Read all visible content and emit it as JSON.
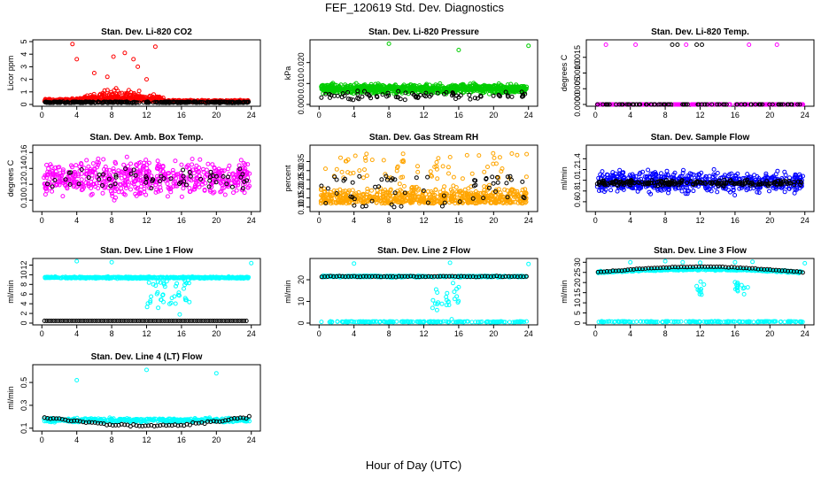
{
  "title": "FEF_120619  Std. Dev. Diagnostics",
  "xlabel": "Hour of Day (UTC)",
  "colors": {
    "red": "#ff0000",
    "green": "#00cc00",
    "magenta": "#ff00ff",
    "orange": "#ffa500",
    "blue": "#0000ff",
    "cyan": "#00ffff",
    "black": "#000000"
  },
  "chart_data": [
    {
      "type": "scatter",
      "title": "Stan. Dev. Li-820 CO2",
      "ylabel": "Licor ppm",
      "xlim": [
        0,
        24
      ],
      "ylim": [
        0,
        5
      ],
      "xticks": [
        "0",
        "4",
        "8",
        "12",
        "16",
        "20",
        "24"
      ],
      "yticks": [
        "0",
        "1",
        "2",
        "3",
        "4",
        "5"
      ],
      "series": [
        {
          "color": "#ff0000",
          "pattern": "base 0.2–1.2 with spikes, peaks near 4.8 at hour 3.5 and 4.6 at hour 13",
          "points": [
            [
              3.5,
              4.8
            ],
            [
              13,
              4.6
            ],
            [
              8.2,
              3.8
            ],
            [
              9.5,
              4.1
            ],
            [
              10.5,
              3.6
            ],
            [
              4,
              3.6
            ],
            [
              11,
              3.0
            ],
            [
              6,
              2.5
            ],
            [
              7.5,
              2.2
            ],
            [
              12,
              2.0
            ]
          ]
        },
        {
          "color": "#000000",
          "pattern": "near 0.15 across 0–24"
        }
      ]
    },
    {
      "type": "scatter",
      "title": "Stan. Dev. Li-820 Pressure",
      "ylabel": "kPa",
      "xlim": [
        0,
        24
      ],
      "ylim": [
        0,
        0.03
      ],
      "xticks": [
        "0",
        "4",
        "8",
        "12",
        "16",
        "20",
        "24"
      ],
      "yticks": [
        "0.000",
        "0.010",
        "0.020"
      ],
      "series": [
        {
          "color": "#00cc00",
          "pattern": "band 0.004–0.011",
          "points": [
            [
              8,
              0.029
            ],
            [
              16,
              0.026
            ],
            [
              24,
              0.028
            ]
          ]
        },
        {
          "color": "#000000",
          "pattern": "band 0.001–0.008"
        }
      ]
    },
    {
      "type": "scatter",
      "title": "Stan. Dev. Li-820 Temp.",
      "ylabel": "degrees C",
      "xlim": [
        0,
        24
      ],
      "ylim": [
        0,
        0.002
      ],
      "xticks": [
        "0",
        "4",
        "8",
        "12",
        "16",
        "20",
        "24"
      ],
      "yticks": [
        "0.0000",
        "0.0005",
        "0.0010",
        "0.0015"
      ],
      "series": [
        {
          "color": "#ff00ff",
          "pattern": "0 across 0–24",
          "points": [
            [
              1.2,
              0.0019
            ],
            [
              4.6,
              0.0019
            ],
            [
              10.4,
              0.0019
            ],
            [
              17.6,
              0.0019
            ],
            [
              20.8,
              0.0019
            ]
          ]
        },
        {
          "color": "#000000",
          "pattern": "0 across 0–24",
          "points": [
            [
              8.8,
              0.0019
            ],
            [
              9.4,
              0.0019
            ],
            [
              11.6,
              0.0019
            ],
            [
              12.2,
              0.0019
            ]
          ]
        }
      ]
    },
    {
      "type": "scatter",
      "title": "Stan. Dev. Amb. Box Temp.",
      "ylabel": "degrees C",
      "xlim": [
        0,
        24
      ],
      "ylim": [
        0.088,
        0.167
      ],
      "xticks": [
        "0",
        "4",
        "8",
        "12",
        "16",
        "20",
        "24"
      ],
      "yticks": [
        "0.10",
        "0.12",
        "0.14",
        "0.16"
      ],
      "series": [
        {
          "color": "#ff00ff",
          "pattern": "scatter 0.09–0.165"
        },
        {
          "color": "#000000",
          "pattern": "scatter 0.10–0.155"
        }
      ]
    },
    {
      "type": "scatter",
      "title": "Stan. Dev. Gas Stream RH",
      "ylabel": "percent",
      "xlim": [
        0,
        24
      ],
      "ylim": [
        0.085,
        0.43
      ],
      "xticks": [
        "0",
        "4",
        "8",
        "12",
        "16",
        "20",
        "24"
      ],
      "yticks": [
        "0.10",
        "0.15",
        "0.20",
        "0.25",
        "0.30",
        "0.35"
      ],
      "series": [
        {
          "color": "#ffa500",
          "pattern": "dense band 0.10–0.25 with points up to 0.42"
        },
        {
          "color": "#000000",
          "pattern": "scatter 0.10–0.28"
        }
      ]
    },
    {
      "type": "scatter",
      "title": "Stan. Dev. Sample Flow",
      "ylabel": "ml/min",
      "xlim": [
        0,
        24
      ],
      "ylim": [
        0.45,
        1.62
      ],
      "xticks": [
        "0",
        "4",
        "8",
        "12",
        "16",
        "20",
        "24"
      ],
      "yticks": [
        "0.6",
        "0.8",
        "1.0",
        "1.2",
        "1.4"
      ],
      "series": [
        {
          "color": "#0000ff",
          "pattern": "scatter 0.55–1.55 centered near 0.95"
        },
        {
          "color": "#000000",
          "pattern": "band 0.85–1.05"
        }
      ]
    },
    {
      "type": "scatter",
      "title": "Stan. Dev. Line 1 Flow",
      "ylabel": "ml/min",
      "xlim": [
        0,
        24
      ],
      "ylim": [
        0,
        13
      ],
      "xticks": [
        "0",
        "4",
        "8",
        "12",
        "16",
        "20",
        "24"
      ],
      "yticks": [
        "0",
        "2",
        "4",
        "6",
        "8",
        "10",
        "12"
      ],
      "series": [
        {
          "color": "#00ffff",
          "pattern": "band near 9.4; dip to 2–8 between hours 12 and 17; points near 12.8 at hours 4, 8, 24"
        },
        {
          "color": "#000000",
          "pattern": "near 0.5 across 0–24"
        }
      ]
    },
    {
      "type": "scatter",
      "title": "Stan. Dev. Line 2 Flow",
      "ylabel": "ml/min",
      "xlim": [
        0,
        24
      ],
      "ylim": [
        0,
        29
      ],
      "xticks": [
        "0",
        "4",
        "8",
        "12",
        "16",
        "20",
        "24"
      ],
      "yticks": [
        "0",
        "10",
        "20"
      ],
      "series": [
        {
          "color": "#00ffff",
          "pattern": "band near 21.5; dip to 5–18 between hours 13 and 16; points near 27.5 at hours 4, 15, 24; second band near 0"
        },
        {
          "color": "#000000",
          "pattern": "near 21.5 across 0–24"
        }
      ]
    },
    {
      "type": "scatter",
      "title": "Stan. Dev. Line 3 Flow",
      "ylabel": "ml/min",
      "xlim": [
        0,
        24
      ],
      "ylim": [
        0,
        31
      ],
      "xticks": [
        "0",
        "4",
        "8",
        "12",
        "16",
        "20",
        "24"
      ],
      "yticks": [
        "0",
        "5",
        "10",
        "15",
        "20",
        "25",
        "30"
      ],
      "series": [
        {
          "color": "#00ffff",
          "pattern": "band near 25; dips to 15–20 near hours 12 and 16–17; second band near 0.5"
        },
        {
          "color": "#000000",
          "pattern": "rises from 25 to 28 near hour 12 then back to 25"
        }
      ]
    },
    {
      "type": "scatter",
      "title": "Stan. Dev. Line 4 (LT) Flow",
      "ylabel": "ml/min",
      "xlim": [
        0,
        24
      ],
      "ylim": [
        0.09,
        0.64
      ],
      "xticks": [
        "0",
        "4",
        "8",
        "12",
        "16",
        "20",
        "24"
      ],
      "yticks": [
        "0.1",
        "0.3",
        "0.5"
      ],
      "series": [
        {
          "color": "#00ffff",
          "pattern": "band 0.13–0.22",
          "points": [
            [
              4,
              0.52
            ],
            [
              12,
              0.61
            ],
            [
              20,
              0.58
            ]
          ]
        },
        {
          "color": "#000000",
          "pattern": "near 0.2 at hour 0 falling to 0.12 at hour 12 then back to 0.22"
        }
      ]
    }
  ]
}
